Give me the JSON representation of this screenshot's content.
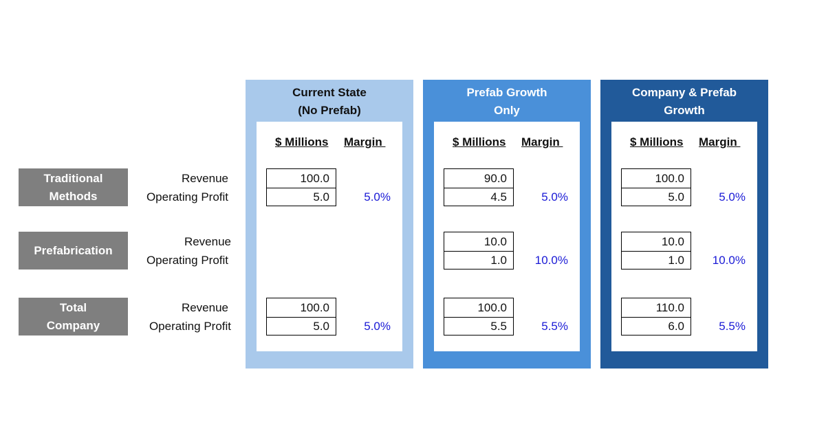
{
  "rows": [
    {
      "label": "Traditional\nMethods",
      "revenue_label": "Revenue",
      "profit_label": "Operating Profit"
    },
    {
      "label": "Prefabrication",
      "revenue_label": "Revenue",
      "profit_label": "Operating Profit"
    },
    {
      "label": "Total\nCompany",
      "revenue_label": "Revenue",
      "profit_label": "Operating Profit"
    }
  ],
  "headers": {
    "millions": "$ Millions",
    "margin": "Margin "
  },
  "colors": {
    "panel_1": "#a9c9eb",
    "panel_2": "#4a90d9",
    "panel_3": "#215a9a",
    "category": "#7f7f7f",
    "margin_text": "#1a1ad6"
  },
  "panels": [
    {
      "title": "Current State\n(No Prefab)",
      "traditional": {
        "revenue": "100.0",
        "profit": "5.0",
        "margin": "5.0%"
      },
      "prefab": {
        "revenue": "",
        "profit": "",
        "margin": ""
      },
      "total": {
        "revenue": "100.0",
        "profit": "5.0",
        "margin": "5.0%"
      }
    },
    {
      "title": "Prefab Growth\nOnly",
      "traditional": {
        "revenue": "90.0",
        "profit": "4.5",
        "margin": "5.0%"
      },
      "prefab": {
        "revenue": "10.0",
        "profit": "1.0",
        "margin": "10.0%"
      },
      "total": {
        "revenue": "100.0",
        "profit": "5.5",
        "margin": "5.5%"
      }
    },
    {
      "title": "Company & Prefab\nGrowth",
      "traditional": {
        "revenue": "100.0",
        "profit": "5.0",
        "margin": "5.0%"
      },
      "prefab": {
        "revenue": "10.0",
        "profit": "1.0",
        "margin": "10.0%"
      },
      "total": {
        "revenue": "110.0",
        "profit": "6.0",
        "margin": "5.5%"
      }
    }
  ]
}
